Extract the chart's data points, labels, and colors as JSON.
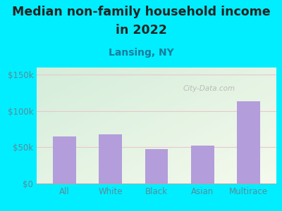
{
  "title_line1": "Median non-family household income",
  "title_line2": "in 2022",
  "subtitle": "Lansing, NY",
  "categories": [
    "All",
    "White",
    "Black",
    "Asian",
    "Multirace"
  ],
  "values": [
    65000,
    68000,
    48000,
    52000,
    113000
  ],
  "bar_color": "#b39ddb",
  "title_fontsize": 12.5,
  "subtitle_fontsize": 10,
  "subtitle_color": "#1a7a9a",
  "title_color": "#222222",
  "bg_outer": "#00eeff",
  "bg_plot_top_left": "#d4edda",
  "bg_plot_bottom_right": "#f5faed",
  "ylabel_ticks": [
    0,
    50000,
    100000,
    150000
  ],
  "ylabel_labels": [
    "$0",
    "$50k",
    "$100k",
    "$150k"
  ],
  "ylim": [
    0,
    160000
  ],
  "watermark": "City-Data.com",
  "tick_color": "#5a8a9a",
  "grid_color": "#e8c8cc",
  "axis_color": "#aaaaaa"
}
